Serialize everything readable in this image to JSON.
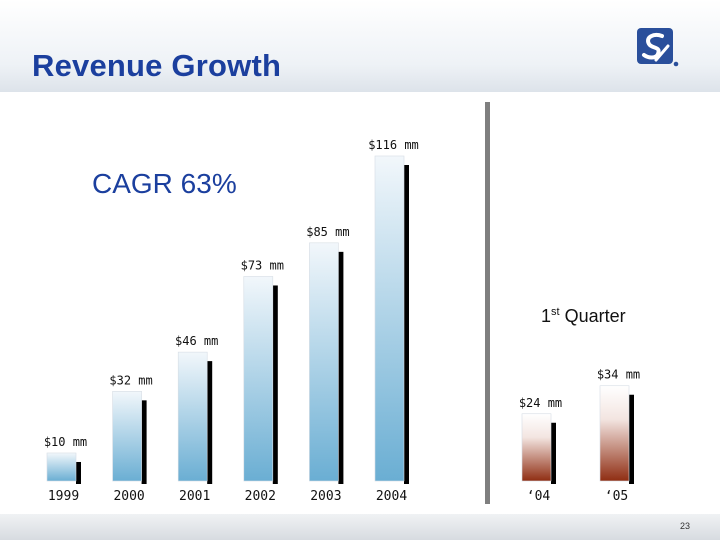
{
  "slide": {
    "title": "Revenue Growth",
    "page_number": "23",
    "logo_icon": "s2-logo-icon"
  },
  "annotations": {
    "cagr": "CAGR 63%",
    "quarter_number": "1",
    "quarter_suffix": "st",
    "quarter_word": "Quarter"
  },
  "colors": {
    "title": "#1b3f9e",
    "annual_bar_top": "#f2f7fb",
    "annual_bar_bottom": "#6aaed3",
    "quarter_bar_top": "#ffffff",
    "quarter_bar_bottom": "#8f2d12",
    "bar_shadow": "#000000",
    "divider": "#7f7f7f"
  },
  "chart_data": [
    {
      "type": "bar",
      "title": "",
      "categories": [
        "1999",
        "2000",
        "2001",
        "2002",
        "2003",
        "2004"
      ],
      "values": [
        10,
        32,
        46,
        73,
        85,
        116
      ],
      "data_labels": [
        "$10 mm",
        "$32 mm",
        "$46 mm",
        "$73 mm",
        "$85 mm",
        "$116 mm"
      ],
      "unit": "$ mm",
      "ylim": [
        0,
        116
      ],
      "grid": false,
      "legend": "none"
    },
    {
      "type": "bar",
      "title": "",
      "categories": [
        "‘04",
        "‘05"
      ],
      "values": [
        24,
        34
      ],
      "data_labels": [
        "$24 mm",
        "$34 mm"
      ],
      "unit": "$ mm",
      "ylim": [
        0,
        116
      ],
      "grid": false,
      "legend": "none"
    }
  ]
}
